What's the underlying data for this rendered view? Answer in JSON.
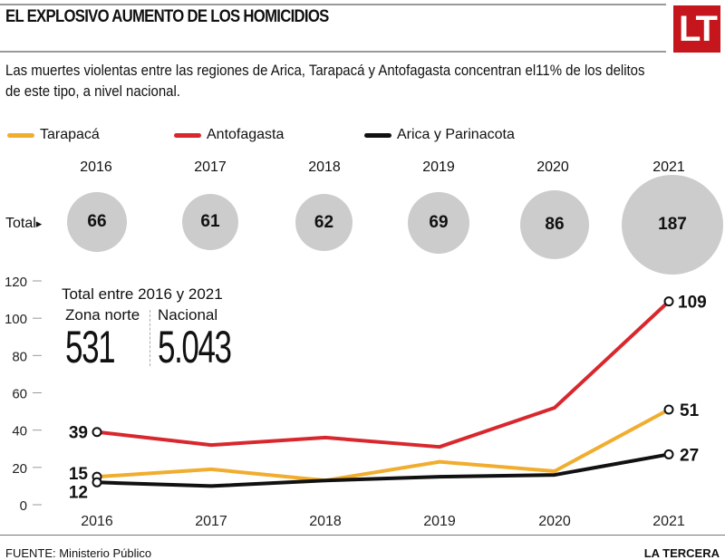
{
  "header": {
    "title": "EL EXPLOSIVO AUMENTO DE LOS HOMICIDIOS",
    "logo": "LT",
    "subtitle_line1": "Las muertes violentas  entre las regiones de Arica, Tarapacá y Antofagasta concentran el11% de los delitos",
    "subtitle_line2": "de este tipo, a nivel nacional."
  },
  "legend": [
    {
      "label": "Tarapacá",
      "color": "#f0ad2e"
    },
    {
      "label": "Antofagasta",
      "color": "#d8282e"
    },
    {
      "label": "Arica y Parinacota",
      "color": "#111111"
    }
  ],
  "totals": {
    "label": "Total",
    "arrow": "▸",
    "years": [
      "2016",
      "2017",
      "2018",
      "2019",
      "2020",
      "2021"
    ],
    "values": [
      "66",
      "61",
      "62",
      "69",
      "86",
      "187"
    ]
  },
  "inset": {
    "title": "Total entre 2016 y 2021",
    "left_label": "Zona norte",
    "left_value": "531",
    "right_label": "Nacional",
    "right_value": "5.043"
  },
  "chart_data": {
    "type": "line",
    "title": "EL EXPLOSIVO AUMENTO DE LOS HOMICIDIOS",
    "xlabel": "",
    "ylabel": "",
    "x": [
      "2016",
      "2017",
      "2018",
      "2019",
      "2020",
      "2021"
    ],
    "ylim": [
      0,
      120
    ],
    "yticks": [
      0,
      20,
      40,
      60,
      80,
      100,
      120
    ],
    "grid": false,
    "legend_position": "top-left",
    "series": [
      {
        "name": "Antofagasta",
        "color": "#d8282e",
        "values": [
          39,
          32,
          36,
          31,
          52,
          109
        ],
        "labels": {
          "0": "39",
          "5": "109"
        }
      },
      {
        "name": "Tarapacá",
        "color": "#f0ad2e",
        "values": [
          15,
          19,
          13,
          23,
          18,
          51
        ],
        "labels": {
          "0": "15",
          "5": "51"
        }
      },
      {
        "name": "Arica y Parinacota",
        "color": "#111111",
        "values": [
          12,
          10,
          13,
          15,
          16,
          27
        ],
        "labels": {
          "0": "12",
          "5": "27"
        }
      }
    ],
    "totals": [
      66,
      61,
      62,
      69,
      86,
      187
    ]
  },
  "footer": {
    "source": "FUENTE: Ministerio Público",
    "brand": "LA TERCERA"
  }
}
